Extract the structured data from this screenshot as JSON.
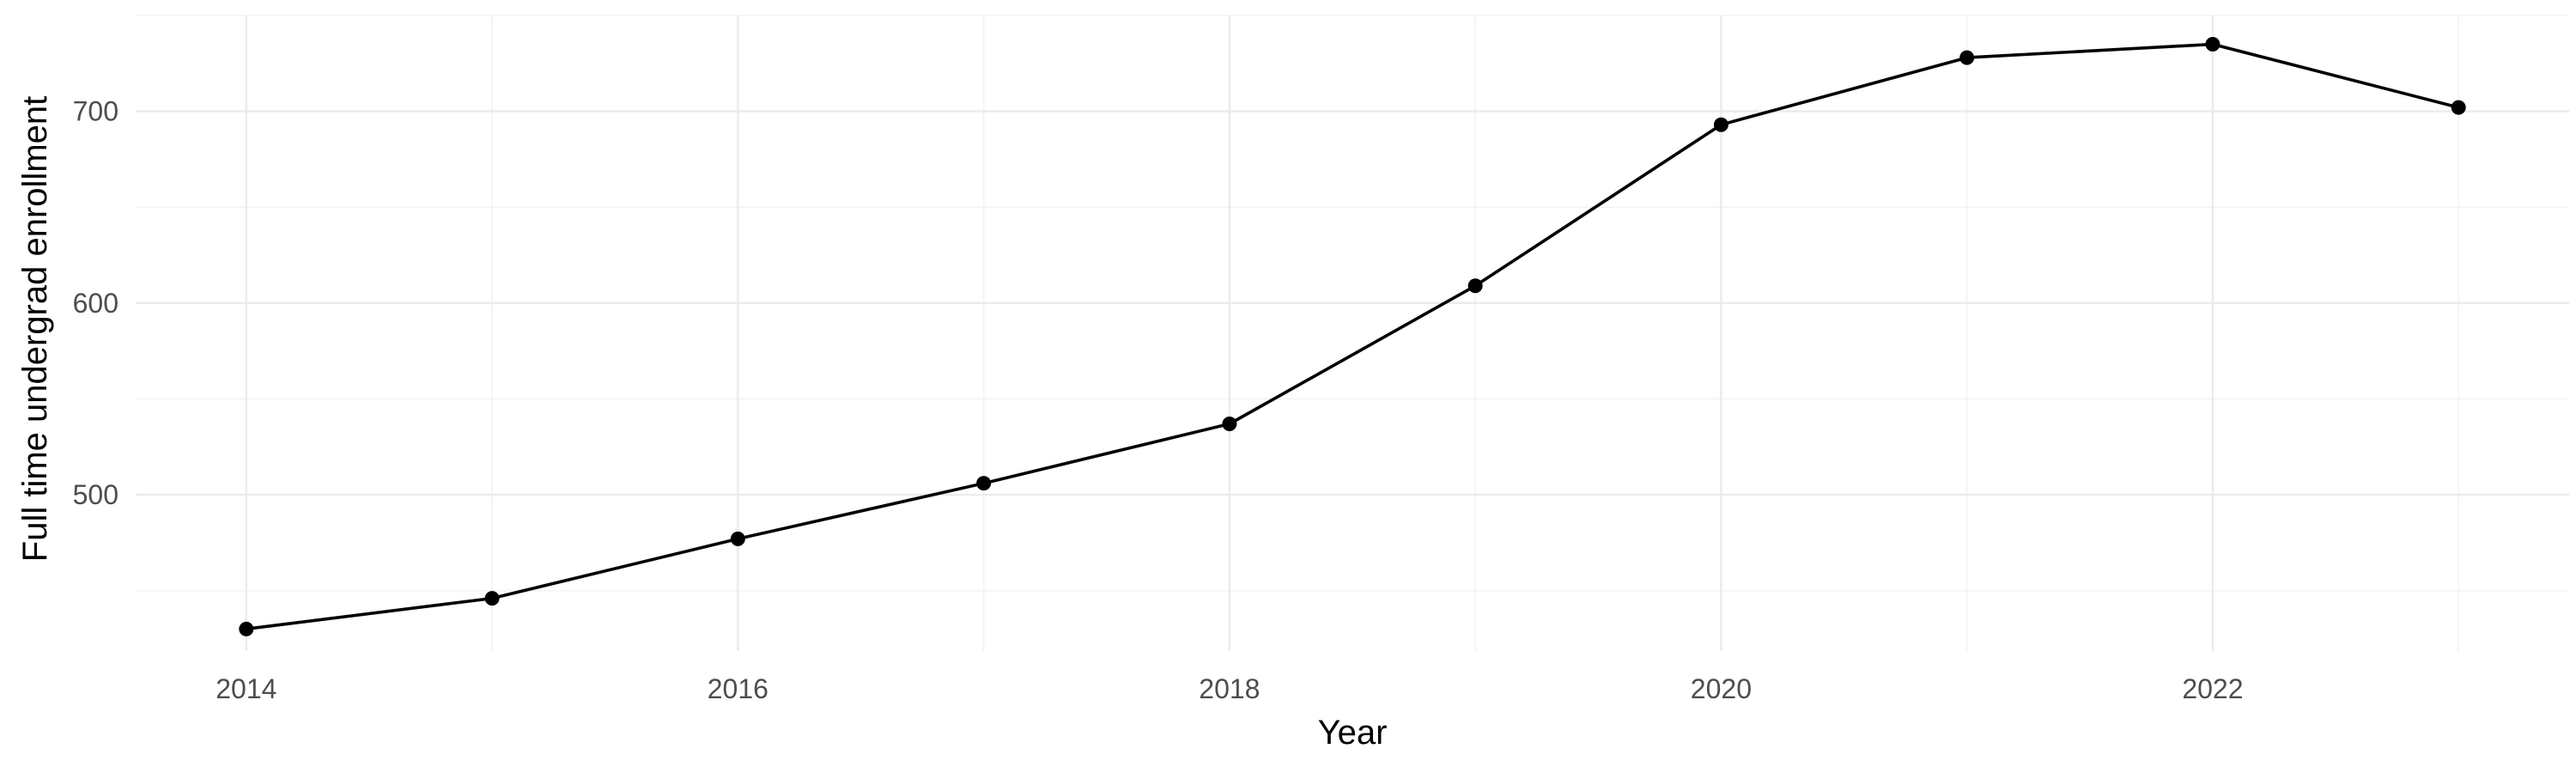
{
  "chart_data": {
    "type": "line",
    "title": "",
    "xlabel": "Year",
    "ylabel": "Full time undergrad enrollment",
    "x": [
      2014,
      2015,
      2016,
      2017,
      2018,
      2019,
      2020,
      2021,
      2022,
      2023
    ],
    "series": [
      {
        "name": "",
        "values": [
          430,
          446,
          477,
          506,
          537,
          609,
          693,
          728,
          735,
          702
        ],
        "color": "#000000",
        "markers": true
      }
    ],
    "xlim": [
      2013.55,
      2023.45
    ],
    "ylim": [
      418.5,
      750
    ],
    "x_ticks": [
      2014,
      2016,
      2018,
      2020,
      2022
    ],
    "x_tick_labels": [
      "2014",
      "2016",
      "2018",
      "2020",
      "2022"
    ],
    "y_ticks": [
      500,
      600,
      700
    ],
    "y_tick_labels": [
      "500",
      "600",
      "700"
    ],
    "x_minor_ticks": [
      2015,
      2017,
      2019,
      2021,
      2023
    ],
    "y_minor_ticks": [
      450,
      550,
      650,
      750
    ],
    "grid": true,
    "legend": "none",
    "theme": "minimal"
  }
}
